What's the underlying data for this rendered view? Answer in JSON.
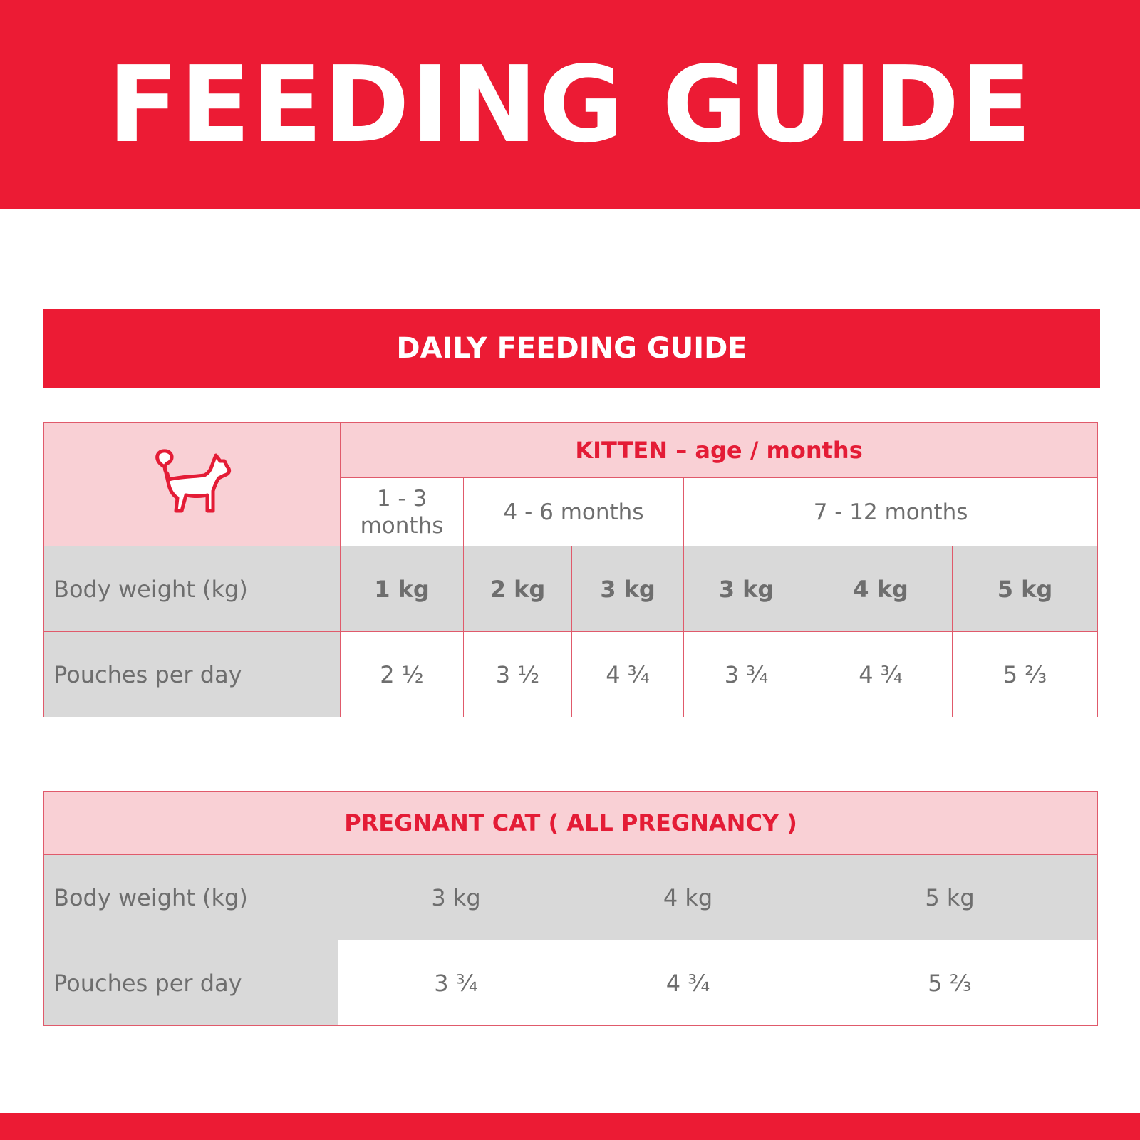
{
  "header": {
    "title": "FEEDING GUIDE"
  },
  "section": {
    "title": "DAILY FEEDING GUIDE"
  },
  "kitten": {
    "heading": "KITTEN – age / months",
    "icon": "cat-icon",
    "ages": [
      "1 - 3 months",
      "4 - 6 months",
      "7 - 12 months"
    ],
    "weight_label": "Body weight (kg)",
    "weights": [
      "1 kg",
      "2 kg",
      "3 kg",
      "3 kg",
      "4 kg",
      "5 kg"
    ],
    "pouches_label": "Pouches per day",
    "pouches": [
      "2 ½",
      "3 ½",
      "4 ¾",
      "3 ¾",
      "4 ¾",
      "5 ⅔"
    ]
  },
  "pregnant": {
    "heading": "PREGNANT CAT ( ALL PREGNANCY )",
    "weight_label": "Body weight (kg)",
    "weights": [
      "3 kg",
      "4 kg",
      "5 kg"
    ],
    "pouches_label": "Pouches per day",
    "pouches": [
      "3 ¾",
      "4 ¾",
      "5 ⅔"
    ]
  },
  "colors": {
    "brand_red": "#ec1b34",
    "pink": "#f9d0d5",
    "grey": "#d9d9d9",
    "text_grey": "#6e6e6e"
  }
}
